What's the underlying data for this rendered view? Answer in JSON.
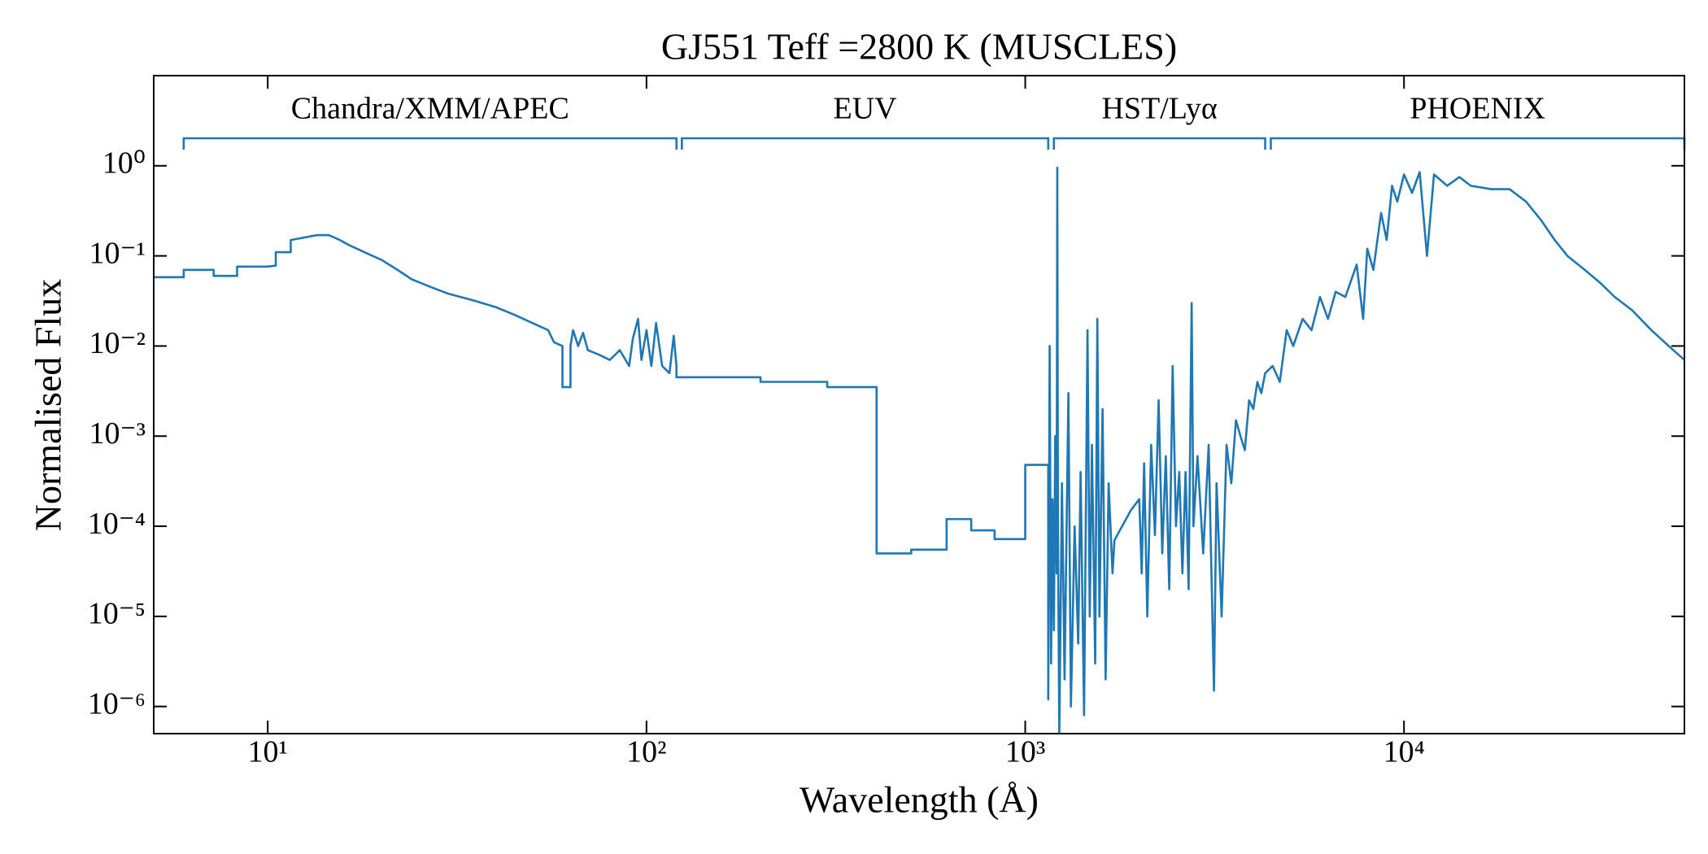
{
  "chart_data": {
    "type": "line",
    "title": "GJ551 Teff =2800 K (MUSCLES)",
    "x_label": "Wavelength (Å)",
    "y_label": "Normalised Flux",
    "x_scale": "log",
    "y_scale": "log",
    "color": "#1f77b4",
    "xlim": [
      5,
      55000
    ],
    "ylim": [
      5e-07,
      10
    ],
    "xticks": [
      {
        "value": 10,
        "label": "10¹"
      },
      {
        "value": 100,
        "label": "10²"
      },
      {
        "value": 1000,
        "label": "10³"
      },
      {
        "value": 10000,
        "label": "10⁴"
      }
    ],
    "yticks": [
      {
        "value": 1e-06,
        "label": "10⁻⁶"
      },
      {
        "value": 1e-05,
        "label": "10⁻⁵"
      },
      {
        "value": 0.0001,
        "label": "10⁻⁴"
      },
      {
        "value": 0.001,
        "label": "10⁻³"
      },
      {
        "value": 0.01,
        "label": "10⁻²"
      },
      {
        "value": 0.1,
        "label": "10⁻¹"
      },
      {
        "value": 1,
        "label": "10⁰"
      }
    ],
    "regions": [
      {
        "label": "Chandra/XMM/APEC",
        "xmin": 6,
        "xmax": 120
      },
      {
        "label": "EUV",
        "xmin": 124,
        "xmax": 1150
      },
      {
        "label": "HST/Lyα",
        "xmin": 1190,
        "xmax": 4300
      },
      {
        "label": "PHOENIX",
        "xmin": 4450,
        "xmax": 55000
      }
    ],
    "x": [
      5,
      6,
      6,
      7.2,
      7.2,
      8.3,
      8.3,
      10,
      10.5,
      10.5,
      11.5,
      11.5,
      12.5,
      13.5,
      14.5,
      15.5,
      16.5,
      18,
      20,
      22,
      24,
      27,
      30,
      35,
      40,
      45,
      50,
      55,
      57,
      60,
      60,
      63,
      63,
      64,
      66,
      68,
      70,
      75,
      80,
      85,
      90,
      92,
      95,
      97,
      100,
      103,
      106,
      110,
      115,
      118,
      120,
      120,
      200,
      200,
      300,
      300,
      400,
      405,
      405,
      500,
      500,
      620,
      620,
      720,
      720,
      830,
      830,
      1000,
      1000,
      1150,
      1150,
      1160,
      1170,
      1180,
      1190,
      1200,
      1210,
      1215,
      1220,
      1230,
      1250,
      1270,
      1300,
      1320,
      1350,
      1380,
      1400,
      1430,
      1460,
      1480,
      1500,
      1530,
      1550,
      1570,
      1600,
      1630,
      1660,
      1700,
      1720,
      1900,
      2000,
      2030,
      2060,
      2100,
      2150,
      2200,
      2250,
      2300,
      2350,
      2400,
      2450,
      2500,
      2550,
      2600,
      2650,
      2700,
      2750,
      2780,
      2850,
      2950,
      3050,
      3150,
      3200,
      3300,
      3400,
      3500,
      3600,
      3700,
      3800,
      3900,
      4000,
      4100,
      4200,
      4300,
      4500,
      4700,
      4900,
      5100,
      5400,
      5700,
      6000,
      6300,
      6600,
      7000,
      7500,
      7800,
      8000,
      8300,
      8700,
      9000,
      9300,
      9600,
      10000,
      10500,
      11000,
      11500,
      12000,
      13000,
      14000,
      15000,
      17000,
      19000,
      21000,
      23000,
      25000,
      27000,
      30000,
      33000,
      36000,
      40000,
      45000,
      50000,
      55000
    ],
    "values": [
      0.058,
      0.058,
      0.07,
      0.07,
      0.06,
      0.06,
      0.076,
      0.076,
      0.078,
      0.11,
      0.11,
      0.15,
      0.16,
      0.17,
      0.17,
      0.15,
      0.13,
      0.11,
      0.09,
      0.07,
      0.055,
      0.045,
      0.038,
      0.032,
      0.027,
      0.022,
      0.018,
      0.015,
      0.011,
      0.01,
      0.0035,
      0.0035,
      0.01,
      0.015,
      0.01,
      0.014,
      0.009,
      0.008,
      0.007,
      0.009,
      0.006,
      0.012,
      0.02,
      0.007,
      0.015,
      0.006,
      0.018,
      0.006,
      0.005,
      0.013,
      0.006,
      0.0045,
      0.0045,
      0.004,
      0.004,
      0.0035,
      0.0035,
      0.0035,
      5e-05,
      5e-05,
      5.5e-05,
      5.5e-05,
      0.00012,
      0.00012,
      9e-05,
      9e-05,
      7.2e-05,
      7.2e-05,
      0.00048,
      0.00048,
      1.2e-06,
      0.01,
      3e-06,
      0.0002,
      7e-06,
      0.001,
      3e-05,
      0.95,
      0.0001,
      5e-07,
      0.0003,
      2e-06,
      0.003,
      1e-06,
      0.0001,
      5e-06,
      0.0004,
      8e-07,
      0.015,
      1e-05,
      0.0008,
      3e-06,
      0.02,
      1e-05,
      0.002,
      2e-06,
      0.0003,
      3e-05,
      7e-05,
      0.00015,
      0.0002,
      3e-05,
      0.0005,
      1e-05,
      0.0008,
      8e-05,
      0.0025,
      5e-05,
      0.0006,
      2e-05,
      0.006,
      0.0001,
      0.0004,
      3e-05,
      0.0004,
      2e-05,
      0.03,
      0.0001,
      0.0006,
      5e-05,
      0.0008,
      1.5e-06,
      0.0003,
      1e-05,
      0.0008,
      0.0003,
      0.0015,
      0.001,
      0.0007,
      0.0025,
      0.002,
      0.004,
      0.003,
      0.005,
      0.006,
      0.004,
      0.015,
      0.01,
      0.02,
      0.015,
      0.035,
      0.02,
      0.04,
      0.035,
      0.08,
      0.02,
      0.12,
      0.07,
      0.3,
      0.15,
      0.6,
      0.4,
      0.8,
      0.5,
      0.85,
      0.1,
      0.8,
      0.6,
      0.75,
      0.6,
      0.55,
      0.55,
      0.4,
      0.25,
      0.15,
      0.1,
      0.07,
      0.05,
      0.035,
      0.025,
      0.015,
      0.01,
      0.007
    ]
  }
}
